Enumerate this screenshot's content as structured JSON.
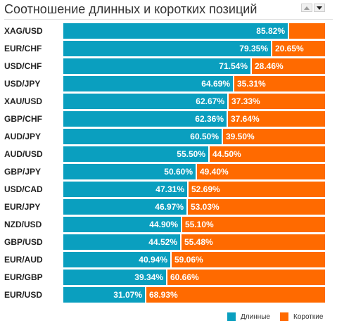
{
  "title": "Соотношение длинных и коротких позиций",
  "sort_up_icon": "triangle-up-icon",
  "sort_down_icon": "triangle-down-icon",
  "colors": {
    "long": "#0a9fbf",
    "short": "#ff6a00"
  },
  "legend": {
    "long_label": "Длинные",
    "short_label": "Короткие"
  },
  "chart_data": {
    "type": "bar",
    "stacked": true,
    "orientation": "horizontal",
    "title": "Соотношение длинных и коротких позиций",
    "categories": [
      "XAG/USD",
      "EUR/CHF",
      "USD/CHF",
      "USD/JPY",
      "XAU/USD",
      "GBP/CHF",
      "AUD/JPY",
      "AUD/USD",
      "GBP/JPY",
      "USD/CAD",
      "EUR/JPY",
      "NZD/USD",
      "GBP/USD",
      "EUR/AUD",
      "EUR/GBP",
      "EUR/USD"
    ],
    "series": [
      {
        "name": "Длинные",
        "values": [
          85.82,
          79.35,
          71.54,
          64.69,
          62.67,
          62.36,
          60.5,
          55.5,
          50.6,
          47.31,
          46.97,
          44.9,
          44.52,
          40.94,
          39.34,
          31.07
        ],
        "labels": [
          "85.82%",
          "79.35%",
          "71.54%",
          "64.69%",
          "62.67%",
          "62.36%",
          "60.50%",
          "55.50%",
          "50.60%",
          "47.31%",
          "46.97%",
          "44.90%",
          "44.52%",
          "40.94%",
          "39.34%",
          "31.07%"
        ]
      },
      {
        "name": "Короткие",
        "values": [
          14.18,
          20.65,
          28.46,
          35.31,
          37.33,
          37.64,
          39.5,
          44.5,
          49.4,
          52.69,
          53.03,
          55.1,
          55.48,
          59.06,
          60.66,
          68.93
        ],
        "labels": [
          "",
          "20.65%",
          "28.46%",
          "35.31%",
          "37.33%",
          "37.64%",
          "39.50%",
          "44.50%",
          "49.40%",
          "52.69%",
          "53.03%",
          "55.10%",
          "55.48%",
          "59.06%",
          "60.66%",
          "68.93%"
        ]
      }
    ],
    "xlim": [
      0,
      100
    ],
    "legend_position": "bottom-right"
  }
}
